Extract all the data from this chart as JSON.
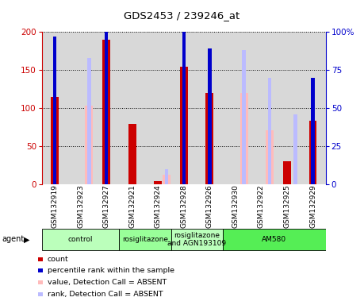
{
  "title": "GDS2453 / 239246_at",
  "samples": [
    "GSM132919",
    "GSM132923",
    "GSM132927",
    "GSM132921",
    "GSM132924",
    "GSM132928",
    "GSM132926",
    "GSM132930",
    "GSM132922",
    "GSM132925",
    "GSM132929"
  ],
  "count_values": [
    115,
    0,
    190,
    79,
    5,
    154,
    120,
    0,
    0,
    31,
    84
  ],
  "percentile_rank": [
    97,
    0,
    107,
    0,
    0,
    101,
    89,
    0,
    0,
    0,
    70
  ],
  "absent_value": [
    0,
    103,
    0,
    0,
    13,
    0,
    0,
    120,
    71,
    0,
    0
  ],
  "absent_rank": [
    0,
    83,
    0,
    0,
    10,
    0,
    0,
    88,
    70,
    46,
    0
  ],
  "groups": [
    {
      "label": "control",
      "start": 0,
      "end": 3,
      "color": "#bbffbb"
    },
    {
      "label": "rosiglitazone",
      "start": 3,
      "end": 5,
      "color": "#99ff99"
    },
    {
      "label": "rosiglitazone\nand AGN193109",
      "start": 5,
      "end": 7,
      "color": "#bbffbb"
    },
    {
      "label": "AM580",
      "start": 7,
      "end": 11,
      "color": "#55ee55"
    }
  ],
  "count_color": "#cc0000",
  "rank_color": "#0000cc",
  "absent_value_color": "#ffbbbb",
  "absent_rank_color": "#bbbbff",
  "ylim_left": [
    0,
    200
  ],
  "ylim_right": [
    0,
    100
  ],
  "yticks_left": [
    0,
    50,
    100,
    150,
    200
  ],
  "yticks_right": [
    0,
    25,
    50,
    75,
    100
  ],
  "bg_color": "#d8d8d8"
}
